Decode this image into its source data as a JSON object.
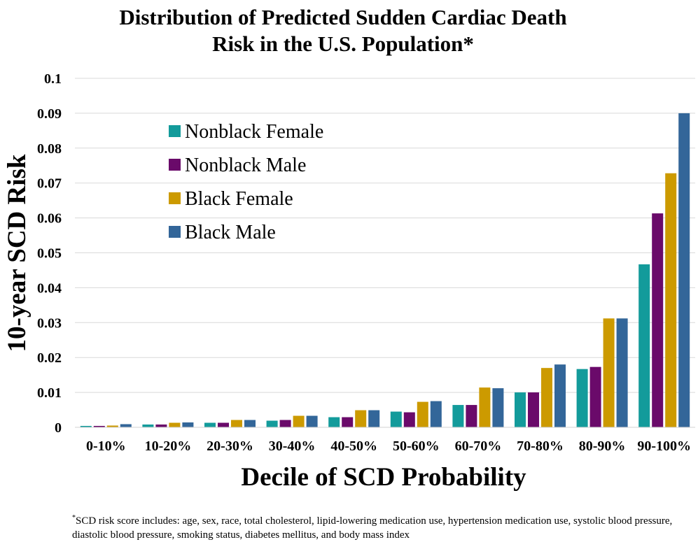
{
  "chart_data": {
    "type": "bar",
    "title_lines": [
      "Distribution of Predicted Sudden Cardiac Death",
      "Risk in the U.S. Population*"
    ],
    "xlabel": "Decile of SCD Probability",
    "ylabel": "10-year SCD Risk",
    "ylim": [
      0,
      0.1
    ],
    "yticks": [
      "0",
      "0.01",
      "0.02",
      "0.03",
      "0.04",
      "0.05",
      "0.06",
      "0.07",
      "0.08",
      "0.09",
      "0.1"
    ],
    "grid": true,
    "legend_position": "top-left",
    "categories": [
      "0-10%",
      "10-20%",
      "20-30%",
      "30-40%",
      "40-50%",
      "50-60%",
      "60-70%",
      "70-80%",
      "80-90%",
      "90-100%"
    ],
    "series": [
      {
        "name": "Nonblack Female",
        "color": "#139b9b",
        "values": [
          0.0004,
          0.0008,
          0.0013,
          0.0019,
          0.0029,
          0.0045,
          0.0064,
          0.01,
          0.0167,
          0.0467
        ]
      },
      {
        "name": "Nonblack Male",
        "color": "#6a0a6a",
        "values": [
          0.0004,
          0.0008,
          0.0013,
          0.0021,
          0.0029,
          0.0043,
          0.0064,
          0.01,
          0.0173,
          0.0613
        ]
      },
      {
        "name": "Black Female",
        "color": "#cc9a00",
        "values": [
          0.0005,
          0.0013,
          0.0021,
          0.0033,
          0.0049,
          0.0073,
          0.0114,
          0.017,
          0.0312,
          0.0728
        ]
      },
      {
        "name": "Black Male",
        "color": "#336699",
        "values": [
          0.0009,
          0.0014,
          0.0021,
          0.0033,
          0.0049,
          0.0075,
          0.0112,
          0.018,
          0.0312,
          0.09
        ]
      }
    ]
  },
  "footnote": {
    "marker": "*",
    "text": "SCD risk score includes: age, sex, race, total cholesterol, lipid-lowering medication use, hypertension medication use, systolic blood pressure, diastolic blood pressure, smoking status, diabetes mellitus, and body mass index"
  }
}
